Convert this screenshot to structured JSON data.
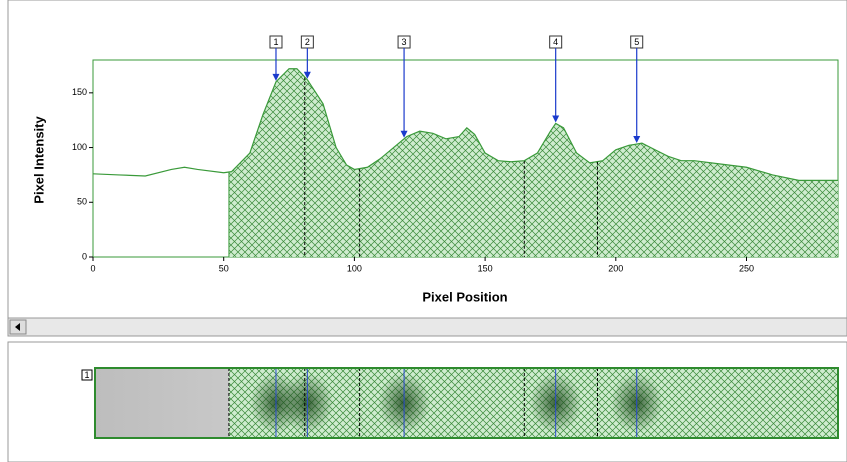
{
  "chart_data": {
    "type": "line",
    "xlabel": "Pixel Position",
    "ylabel": "Pixel Intensity",
    "x": [
      0,
      10,
      20,
      30,
      35,
      40,
      50,
      53,
      60,
      65,
      70,
      75,
      78,
      82,
      88,
      93,
      97,
      100,
      105,
      110,
      115,
      120,
      125,
      130,
      135,
      140,
      143,
      146,
      150,
      155,
      160,
      165,
      170,
      175,
      177,
      180,
      185,
      190,
      195,
      200,
      205,
      210,
      215,
      220,
      225,
      230,
      240,
      250,
      260,
      270,
      280,
      285
    ],
    "series": [
      {
        "color": "#3a9a3a",
        "values": [
          76,
          75,
          74,
          80,
          82,
          80,
          77,
          78,
          95,
          130,
          160,
          172,
          172,
          162,
          140,
          100,
          84,
          80,
          82,
          90,
          100,
          110,
          115,
          113,
          108,
          110,
          118,
          112,
          95,
          88,
          87,
          88,
          95,
          115,
          122,
          118,
          95,
          86,
          88,
          98,
          102,
          104,
          98,
          92,
          88,
          88,
          85,
          82,
          75,
          70,
          70,
          70
        ]
      }
    ],
    "xlim": [
      0,
      285
    ],
    "ylim": [
      0,
      180
    ],
    "xticks": [
      0,
      50,
      100,
      150,
      200,
      250
    ],
    "yticks": [
      0,
      50,
      100,
      150
    ],
    "boundaries": [
      52,
      81,
      102,
      165,
      193
    ],
    "peaks": [
      {
        "label": "1",
        "x": 70
      },
      {
        "label": "2",
        "x": 82
      },
      {
        "label": "3",
        "x": 119
      },
      {
        "label": "4",
        "x": 177
      },
      {
        "label": "5",
        "x": 208
      }
    ],
    "lane_label": "1"
  }
}
